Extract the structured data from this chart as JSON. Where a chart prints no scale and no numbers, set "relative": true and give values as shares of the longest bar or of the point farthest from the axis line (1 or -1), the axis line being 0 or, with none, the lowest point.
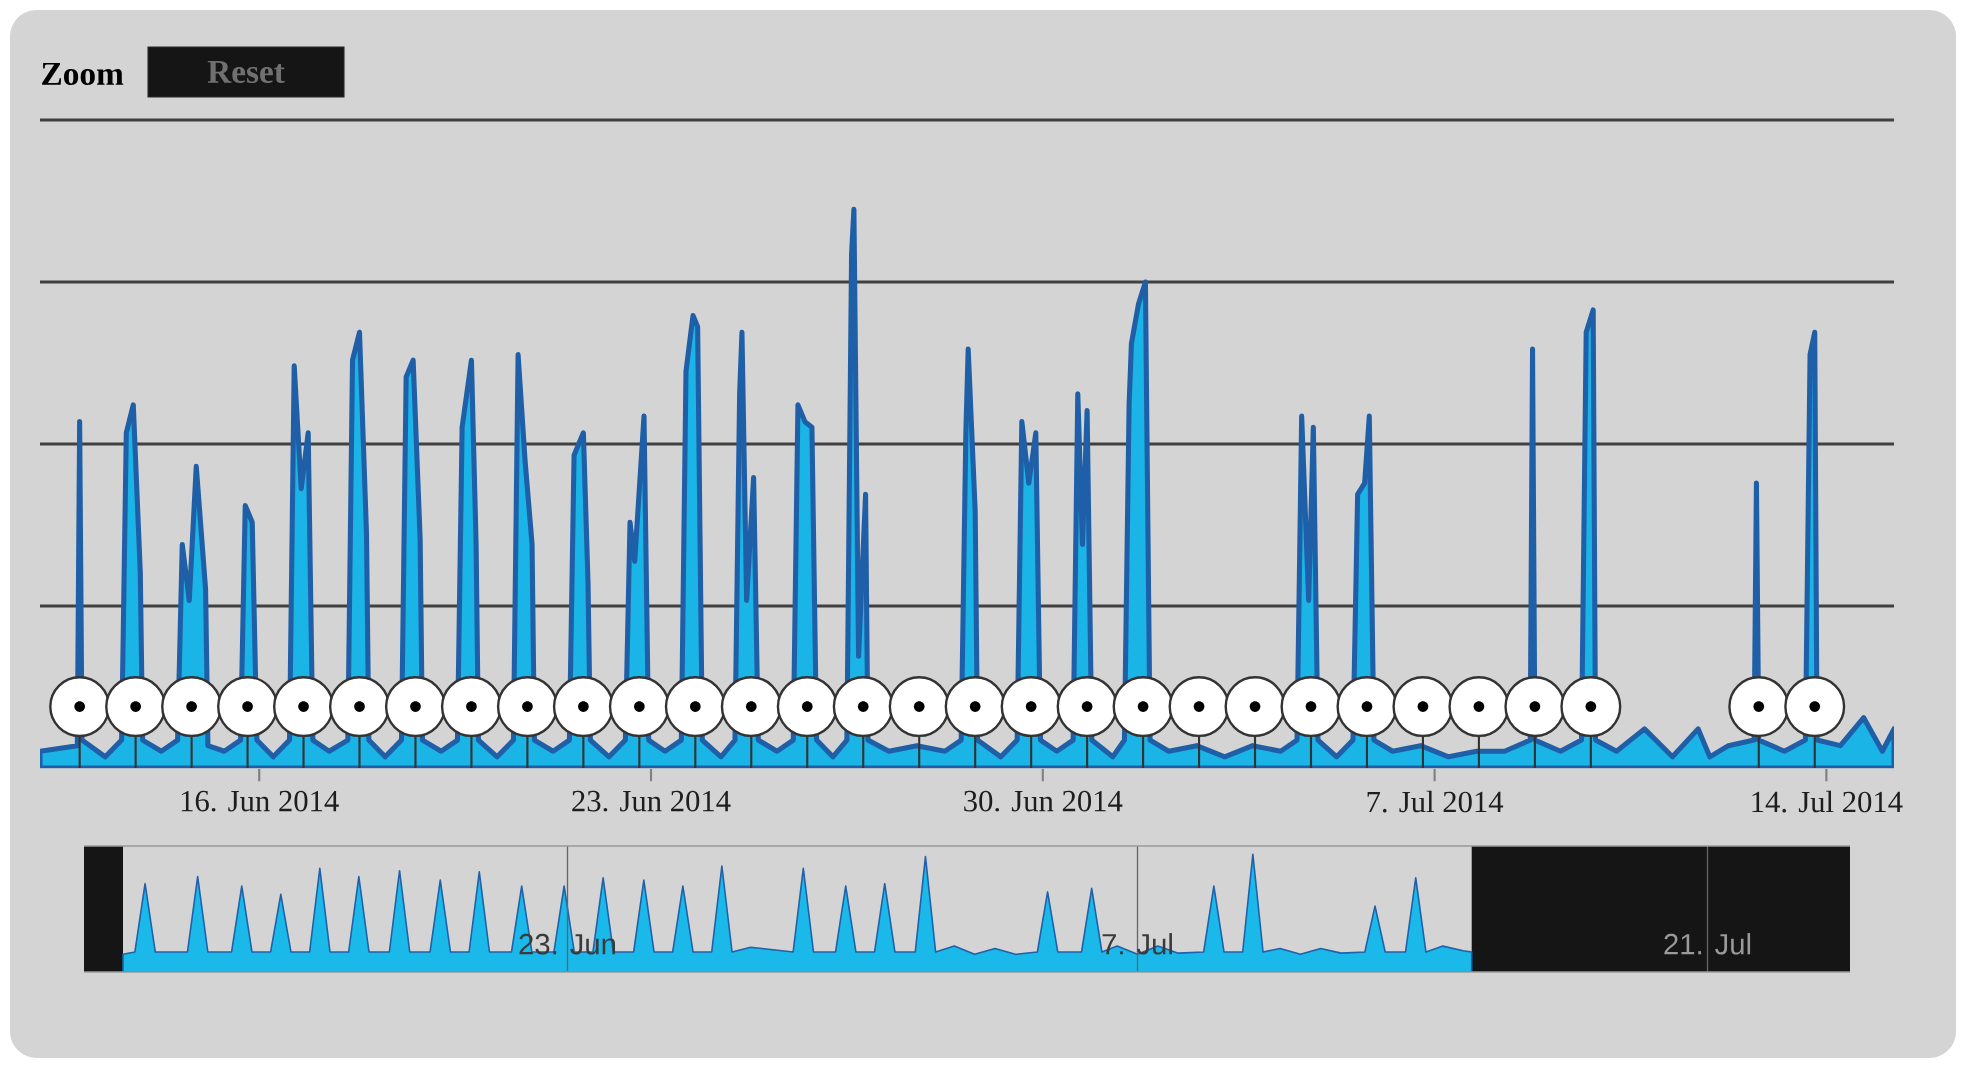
{
  "chart_data": [
    {
      "type": "area",
      "relative": true,
      "xlim": [
        "2014-06-12T02:00",
        "2014-07-15T05:00"
      ],
      "xticks": [
        {
          "value": "2014-06-16",
          "label": "16. Jun 2014"
        },
        {
          "value": "2014-06-23",
          "label": "23. Jun 2014"
        },
        {
          "value": "2014-06-30",
          "label": "30. Jun 2014"
        },
        {
          "value": "2014-07-07",
          "label": "7. Jul 2014"
        },
        {
          "value": "2014-07-14",
          "label": "14. Jul 2014"
        }
      ],
      "grid": "y",
      "tick_labels": "x",
      "annotations": [
        "Zoom",
        "Reset"
      ],
      "series": [
        {
          "color": "#1ab4e6",
          "x": [
            "2014-06-12T02:00",
            "2014-06-12T18:00",
            "2014-06-12T19:00",
            "2014-06-12T20:00",
            "2014-06-13T06:00",
            "2014-06-13T13:00",
            "2014-06-13T15:00",
            "2014-06-13T18:00",
            "2014-06-13T21:00",
            "2014-06-13T22:00",
            "2014-06-14T06:00",
            "2014-06-14T13:00",
            "2014-06-14T15:00",
            "2014-06-14T18:00",
            "2014-06-14T21:00",
            "2014-06-15T01:00",
            "2014-06-15T02:00",
            "2014-06-15T09:00",
            "2014-06-15T16:00",
            "2014-06-15T18:00",
            "2014-06-15T21:00",
            "2014-06-15T23:00",
            "2014-06-16T06:00",
            "2014-06-16T13:00",
            "2014-06-16T15:00",
            "2014-06-16T18:00",
            "2014-06-16T21:00",
            "2014-06-16T23:00",
            "2014-06-17T06:00",
            "2014-06-17T14:00",
            "2014-06-17T16:00",
            "2014-06-17T19:00",
            "2014-06-17T22:00",
            "2014-06-17T23:00",
            "2014-06-18T06:00",
            "2014-06-18T13:00",
            "2014-06-18T15:00",
            "2014-06-18T18:00",
            "2014-06-18T21:00",
            "2014-06-18T22:00",
            "2014-06-19T06:00",
            "2014-06-19T13:00",
            "2014-06-19T15:00",
            "2014-06-19T19:00",
            "2014-06-19T21:00",
            "2014-06-19T22:00",
            "2014-06-20T06:00",
            "2014-06-20T13:00",
            "2014-06-20T15:00",
            "2014-06-20T18:00",
            "2014-06-20T21:00",
            "2014-06-20T22:00",
            "2014-06-21T06:00",
            "2014-06-21T13:00",
            "2014-06-21T15:00",
            "2014-06-21T19:00",
            "2014-06-21T21:00",
            "2014-06-21T22:00",
            "2014-06-22T06:00",
            "2014-06-22T13:00",
            "2014-06-22T15:00",
            "2014-06-22T17:00",
            "2014-06-22T21:00",
            "2014-06-22T23:00",
            "2014-06-23T06:00",
            "2014-06-23T13:00",
            "2014-06-23T15:00",
            "2014-06-23T18:00",
            "2014-06-23T20:00",
            "2014-06-23T22:00",
            "2014-06-24T06:00",
            "2014-06-24T12:00",
            "2014-06-24T14:00",
            "2014-06-24T15:00",
            "2014-06-24T17:00",
            "2014-06-24T20:00",
            "2014-06-24T22:00",
            "2014-06-25T06:00",
            "2014-06-25T13:00",
            "2014-06-25T15:00",
            "2014-06-25T18:00",
            "2014-06-25T21:00",
            "2014-06-25T23:00",
            "2014-06-26T06:00",
            "2014-06-26T12:00",
            "2014-06-26T14:00",
            "2014-06-26T15:00",
            "2014-06-26T17:00",
            "2014-06-26T20:00",
            "2014-06-26T21:00",
            "2014-06-27T06:00",
            "2014-06-27T18:00",
            "2014-06-28T06:00",
            "2014-06-28T13:00",
            "2014-06-28T15:00",
            "2014-06-28T16:00",
            "2014-06-28T19:00",
            "2014-06-28T20:00",
            "2014-06-29T06:00",
            "2014-06-29T13:00",
            "2014-06-29T15:00",
            "2014-06-29T18:00",
            "2014-06-29T21:00",
            "2014-06-29T23:00",
            "2014-06-30T06:00",
            "2014-06-30T13:00",
            "2014-06-30T15:00",
            "2014-06-30T17:00",
            "2014-06-30T19:00",
            "2014-06-30T21:00",
            "2014-07-01T06:00",
            "2014-07-01T11:00",
            "2014-07-01T13:00",
            "2014-07-01T14:00",
            "2014-07-01T17:00",
            "2014-07-01T20:00",
            "2014-07-01T22:00",
            "2014-07-02T06:00",
            "2014-07-02T18:00",
            "2014-07-03T06:00",
            "2014-07-03T18:00",
            "2014-07-04T06:00",
            "2014-07-04T13:00",
            "2014-07-04T15:00",
            "2014-07-04T18:00",
            "2014-07-04T20:00",
            "2014-07-04T22:00",
            "2014-07-05T06:00",
            "2014-07-05T13:00",
            "2014-07-05T15:00",
            "2014-07-05T18:00",
            "2014-07-05T20:00",
            "2014-07-05T22:00",
            "2014-07-06T06:00",
            "2014-07-06T18:00",
            "2014-07-07T06:00",
            "2014-07-07T18:00",
            "2014-07-08T06:00",
            "2014-07-08T17:00",
            "2014-07-08T18:00",
            "2014-07-08T19:00",
            "2014-07-09T06:00",
            "2014-07-09T15:00",
            "2014-07-09T17:00",
            "2014-07-09T20:00",
            "2014-07-09T21:00",
            "2014-07-10T06:00",
            "2014-07-10T18:00",
            "2014-07-11T06:00",
            "2014-07-11T17:00",
            "2014-07-11T22:00",
            "2014-07-12T06:00",
            "2014-07-12T17:00",
            "2014-07-12T18:00",
            "2014-07-12T19:00",
            "2014-07-13T06:00",
            "2014-07-13T15:00",
            "2014-07-13T17:00",
            "2014-07-13T19:00",
            "2014-07-13T20:00",
            "2014-07-14T06:00",
            "2014-07-14T16:00",
            "2014-07-15T00:00",
            "2014-07-15T05:00"
          ],
          "values": [
            0.03,
            0.04,
            0.62,
            0.05,
            0.02,
            0.05,
            0.6,
            0.65,
            0.35,
            0.05,
            0.03,
            0.05,
            0.4,
            0.3,
            0.54,
            0.32,
            0.04,
            0.03,
            0.05,
            0.47,
            0.44,
            0.05,
            0.02,
            0.05,
            0.72,
            0.5,
            0.6,
            0.05,
            0.03,
            0.05,
            0.73,
            0.78,
            0.42,
            0.05,
            0.02,
            0.05,
            0.7,
            0.73,
            0.41,
            0.05,
            0.03,
            0.05,
            0.61,
            0.73,
            0.4,
            0.05,
            0.02,
            0.05,
            0.74,
            0.55,
            0.4,
            0.05,
            0.03,
            0.05,
            0.56,
            0.6,
            0.33,
            0.05,
            0.02,
            0.05,
            0.44,
            0.37,
            0.63,
            0.05,
            0.03,
            0.05,
            0.71,
            0.81,
            0.79,
            0.05,
            0.02,
            0.05,
            0.67,
            0.78,
            0.3,
            0.52,
            0.05,
            0.03,
            0.05,
            0.65,
            0.62,
            0.61,
            0.05,
            0.02,
            0.05,
            0.92,
            1.0,
            0.2,
            0.49,
            0.05,
            0.03,
            0.04,
            0.03,
            0.05,
            0.6,
            0.75,
            0.46,
            0.05,
            0.02,
            0.05,
            0.62,
            0.51,
            0.6,
            0.05,
            0.03,
            0.05,
            0.67,
            0.4,
            0.64,
            0.05,
            0.02,
            0.05,
            0.65,
            0.76,
            0.83,
            0.87,
            0.05,
            0.03,
            0.04,
            0.02,
            0.04,
            0.03,
            0.05,
            0.63,
            0.3,
            0.61,
            0.05,
            0.02,
            0.05,
            0.49,
            0.51,
            0.63,
            0.05,
            0.03,
            0.04,
            0.02,
            0.03,
            0.03,
            0.05,
            0.75,
            0.05,
            0.03,
            0.05,
            0.78,
            0.82,
            0.05,
            0.03,
            0.07,
            0.02,
            0.07,
            0.02,
            0.04,
            0.05,
            0.51,
            0.05,
            0.03,
            0.05,
            0.74,
            0.78,
            0.05,
            0.04,
            0.09,
            0.03,
            0.07
          ]
        },
        {
          "type": "lollipop",
          "color": "#ffffff",
          "marker": "circle",
          "x": [
            "2014-06-12T19:00",
            "2014-06-13T19:00",
            "2014-06-14T19:00",
            "2014-06-15T19:00",
            "2014-06-16T19:00",
            "2014-06-17T19:00",
            "2014-06-18T19:00",
            "2014-06-19T19:00",
            "2014-06-20T19:00",
            "2014-06-21T19:00",
            "2014-06-22T19:00",
            "2014-06-23T19:00",
            "2014-06-24T19:00",
            "2014-06-25T19:00",
            "2014-06-26T19:00",
            "2014-06-27T19:00",
            "2014-06-28T19:00",
            "2014-06-29T19:00",
            "2014-06-30T19:00",
            "2014-07-01T19:00",
            "2014-07-02T19:00",
            "2014-07-03T19:00",
            "2014-07-04T19:00",
            "2014-07-05T19:00",
            "2014-07-06T19:00",
            "2014-07-07T19:00",
            "2014-07-08T19:00",
            "2014-07-09T19:00",
            "2014-07-12T19:00",
            "2014-07-13T19:00"
          ],
          "values": [
            0.11,
            0.11,
            0.11,
            0.11,
            0.11,
            0.11,
            0.11,
            0.11,
            0.11,
            0.11,
            0.11,
            0.11,
            0.11,
            0.11,
            0.11,
            0.11,
            0.11,
            0.11,
            0.11,
            0.11,
            0.11,
            0.11,
            0.11,
            0.11,
            0.11,
            0.11,
            0.11,
            0.11,
            0.11,
            0.11
          ]
        }
      ]
    },
    {
      "type": "area",
      "relative": true,
      "xlim": [
        "2014-06-11T03:00",
        "2014-07-24T12:00"
      ],
      "xticks": [
        {
          "value": "2014-06-23",
          "label": "23. Jun"
        },
        {
          "value": "2014-07-07",
          "label": "7. Jul"
        },
        {
          "value": "2014-07-21",
          "label": "21. Jul"
        }
      ],
      "grid": "x",
      "tick_labels": "x",
      "bands": [
        {
          "axis": "x",
          "from": "2014-06-11T03:00",
          "to": "2014-06-12T02:00",
          "color": "#151515"
        },
        {
          "axis": "x",
          "from": "2014-07-15T05:00",
          "to": "2014-07-24T12:00",
          "color": "#151515"
        }
      ],
      "x": [
        "2014-06-12T02:00",
        "2014-06-12T09:00",
        "2014-06-12T15:00",
        "2014-06-12T21:00",
        "2014-06-13T16:00",
        "2014-06-13T22:00",
        "2014-06-14T04:00",
        "2014-06-14T18:00",
        "2014-06-15T00:00",
        "2014-06-15T06:00",
        "2014-06-15T17:00",
        "2014-06-15T23:00",
        "2014-06-16T05:00",
        "2014-06-16T16:00",
        "2014-06-16T22:00",
        "2014-06-17T04:00",
        "2014-06-17T15:00",
        "2014-06-17T21:00",
        "2014-06-18T03:00",
        "2014-06-18T15:00",
        "2014-06-18T21:00",
        "2014-06-19T03:00",
        "2014-06-19T15:00",
        "2014-06-19T21:00",
        "2014-06-20T03:00",
        "2014-06-20T14:00",
        "2014-06-20T20:00",
        "2014-06-21T02:00",
        "2014-06-21T15:00",
        "2014-06-21T21:00",
        "2014-06-22T03:00",
        "2014-06-22T16:00",
        "2014-06-22T22:00",
        "2014-06-23T04:00",
        "2014-06-23T15:00",
        "2014-06-23T21:00",
        "2014-06-24T03:00",
        "2014-06-24T15:00",
        "2014-06-24T21:00",
        "2014-06-25T03:00",
        "2014-06-25T14:00",
        "2014-06-25T20:00",
        "2014-06-26T02:00",
        "2014-06-26T13:00",
        "2014-06-26T19:00",
        "2014-06-27T01:00",
        "2014-06-27T12:00",
        "2014-06-28T13:00",
        "2014-06-28T19:00",
        "2014-06-29T01:00",
        "2014-06-29T14:00",
        "2014-06-29T20:00",
        "2014-06-30T02:00",
        "2014-06-30T13:00",
        "2014-06-30T19:00",
        "2014-07-01T01:00",
        "2014-07-01T13:00",
        "2014-07-01T19:00",
        "2014-07-02T01:00",
        "2014-07-02T12:00",
        "2014-07-03T00:00",
        "2014-07-03T12:00",
        "2014-07-04T00:00",
        "2014-07-04T13:00",
        "2014-07-04T19:00",
        "2014-07-05T01:00",
        "2014-07-05T15:00",
        "2014-07-05T21:00",
        "2014-07-06T03:00",
        "2014-07-06T12:00",
        "2014-07-07T00:00",
        "2014-07-07T12:00",
        "2014-07-08T00:00",
        "2014-07-08T15:00",
        "2014-07-08T21:00",
        "2014-07-09T03:00",
        "2014-07-09T14:00",
        "2014-07-09T20:00",
        "2014-07-10T02:00",
        "2014-07-10T12:00",
        "2014-07-11T00:00",
        "2014-07-11T12:00",
        "2014-07-12T00:00",
        "2014-07-12T14:00",
        "2014-07-12T20:00",
        "2014-07-13T02:00",
        "2014-07-13T14:00",
        "2014-07-13T20:00",
        "2014-07-14T02:00",
        "2014-07-14T12:00",
        "2014-07-15T00:00",
        "2014-07-15T05:00"
      ],
      "series": [
        {
          "color": "#1ab9ea",
          "values": [
            0.15,
            0.17,
            0.75,
            0.17,
            0.17,
            0.81,
            0.17,
            0.17,
            0.73,
            0.17,
            0.17,
            0.66,
            0.17,
            0.17,
            0.88,
            0.17,
            0.17,
            0.81,
            0.17,
            0.17,
            0.86,
            0.17,
            0.17,
            0.78,
            0.17,
            0.17,
            0.85,
            0.17,
            0.17,
            0.73,
            0.17,
            0.17,
            0.73,
            0.17,
            0.17,
            0.8,
            0.17,
            0.17,
            0.78,
            0.17,
            0.17,
            0.73,
            0.17,
            0.17,
            0.9,
            0.17,
            0.21,
            0.17,
            0.88,
            0.17,
            0.17,
            0.73,
            0.17,
            0.17,
            0.75,
            0.17,
            0.17,
            0.98,
            0.17,
            0.22,
            0.15,
            0.2,
            0.15,
            0.17,
            0.68,
            0.17,
            0.17,
            0.71,
            0.17,
            0.22,
            0.15,
            0.22,
            0.16,
            0.17,
            0.73,
            0.17,
            0.17,
            1.0,
            0.17,
            0.2,
            0.15,
            0.2,
            0.16,
            0.17,
            0.56,
            0.17,
            0.17,
            0.8,
            0.17,
            0.22,
            0.18,
            0.17
          ]
        }
      ]
    }
  ]
}
